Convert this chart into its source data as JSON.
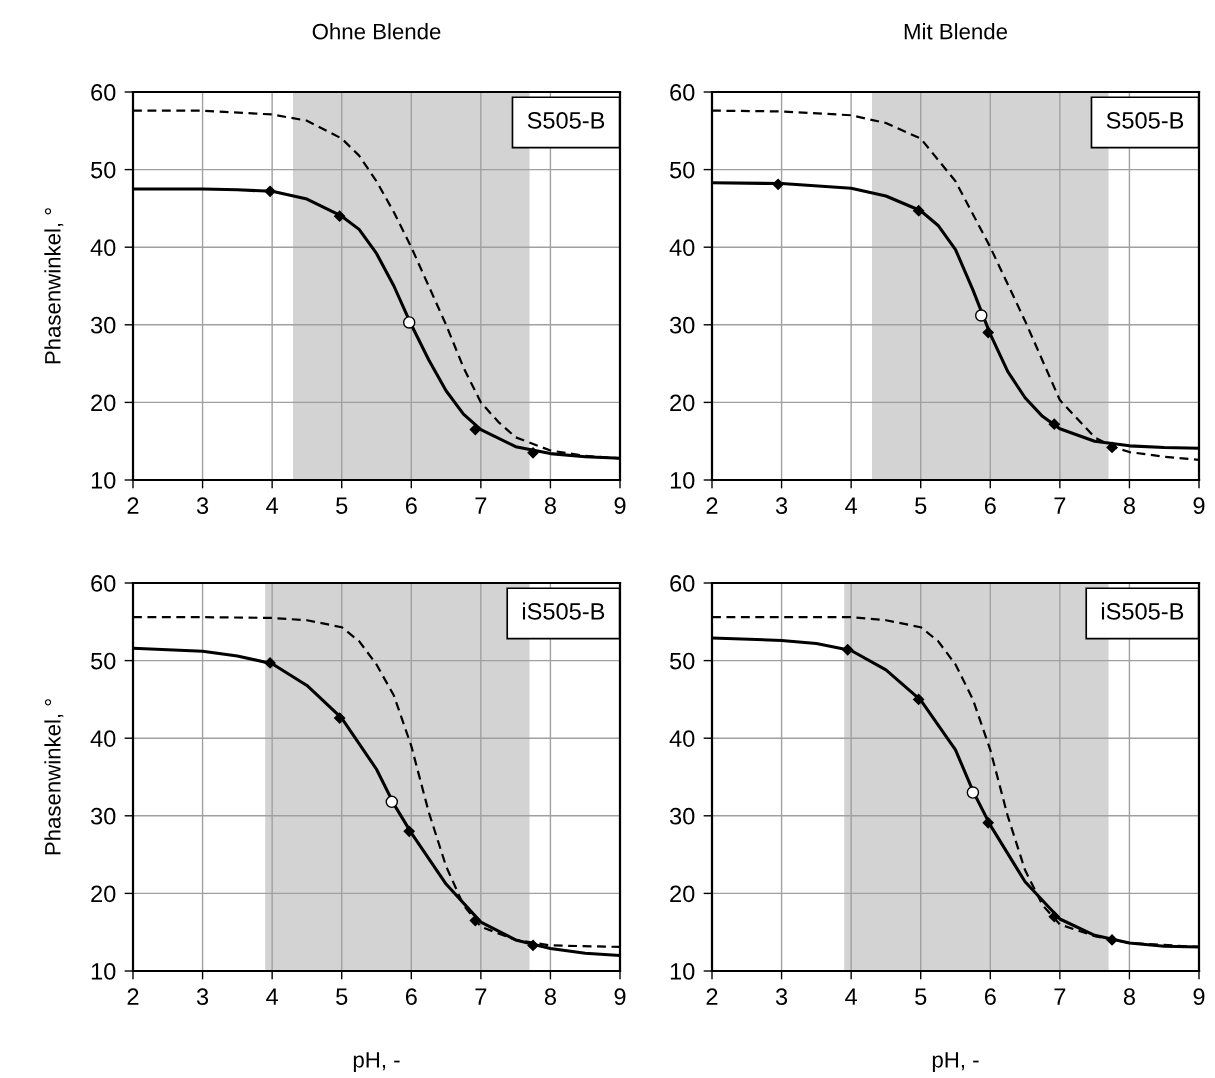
{
  "chart_data": [
    {
      "type": "line",
      "title": "Ohne Blende",
      "ylabel": "Phasenwinkel, °",
      "xlim": [
        2,
        9
      ],
      "ylim": [
        10,
        60
      ],
      "xticks": [
        2,
        3,
        4,
        5,
        6,
        7,
        8,
        9
      ],
      "yticks": [
        10,
        20,
        30,
        40,
        50,
        60
      ],
      "grid": true,
      "annotations": [
        "S505-B"
      ],
      "bands": [
        {
          "axis": "x",
          "from": 4.3,
          "to": 7.7,
          "color": "#d3d3d3"
        }
      ],
      "series": [
        {
          "color": "#000000",
          "line_style": "solid",
          "x": [
            2,
            3,
            3.5,
            4,
            4.5,
            5,
            5.25,
            5.5,
            5.75,
            6,
            6.25,
            6.5,
            6.75,
            7,
            7.5,
            8,
            8.5,
            9
          ],
          "values": [
            47.5,
            47.5,
            47.4,
            47.2,
            46.2,
            44,
            42.3,
            39.2,
            35,
            30,
            25.5,
            21.5,
            18.5,
            16.5,
            14.3,
            13.4,
            13.0,
            12.8
          ]
        },
        {
          "color": "#000000",
          "line_style": "dashed",
          "x": [
            2,
            3,
            4,
            4.5,
            5,
            5.25,
            5.5,
            5.75,
            6,
            6.25,
            6.5,
            6.75,
            7,
            7.25,
            7.5,
            8,
            8.5,
            9
          ],
          "values": [
            57.6,
            57.6,
            57.1,
            56.3,
            54,
            51.8,
            48.5,
            44.5,
            40,
            35,
            30,
            24.5,
            20,
            17.5,
            15.5,
            13.8,
            13.1,
            12.8
          ]
        },
        {
          "type": "scatter",
          "color": "#000000",
          "marker": "diamond",
          "x": [
            3.97,
            4.97,
            6.92,
            7.75
          ],
          "values": [
            47.2,
            44,
            16.5,
            13.5
          ]
        },
        {
          "type": "scatter",
          "color": "#ffffff",
          "marker": "circle",
          "x": [
            5.97
          ],
          "values": [
            30.3
          ]
        }
      ]
    },
    {
      "type": "line",
      "title": "Mit Blende",
      "xlim": [
        2,
        9
      ],
      "ylim": [
        10,
        60
      ],
      "xticks": [
        2,
        3,
        4,
        5,
        6,
        7,
        8,
        9
      ],
      "yticks": [
        10,
        20,
        30,
        40,
        50,
        60
      ],
      "grid": true,
      "annotations": [
        "S505-B"
      ],
      "bands": [
        {
          "axis": "x",
          "from": 4.3,
          "to": 7.7,
          "color": "#d3d3d3"
        }
      ],
      "series": [
        {
          "color": "#000000",
          "line_style": "solid",
          "x": [
            2,
            3,
            4,
            4.5,
            5,
            5.25,
            5.5,
            5.75,
            6,
            6.25,
            6.5,
            6.75,
            7,
            7.5,
            8,
            8.5,
            9
          ],
          "values": [
            48.3,
            48.2,
            47.6,
            46.6,
            44.7,
            42.8,
            39.7,
            34.5,
            28.8,
            24,
            20.6,
            18.2,
            16.6,
            15,
            14.4,
            14.2,
            14.1
          ]
        },
        {
          "color": "#000000",
          "line_style": "dashed",
          "x": [
            2,
            3,
            4,
            4.5,
            5,
            5.5,
            6,
            6.5,
            7,
            7.5,
            7.75,
            8,
            8.5,
            9
          ],
          "values": [
            57.6,
            57.5,
            57,
            56,
            54,
            48.5,
            40,
            30.5,
            20.3,
            15.5,
            14.3,
            13.6,
            13,
            12.6
          ]
        },
        {
          "type": "scatter",
          "color": "#000000",
          "marker": "diamond",
          "x": [
            2.95,
            4.97,
            5.97,
            6.92,
            7.75
          ],
          "values": [
            48.1,
            44.7,
            29,
            17.2,
            14.2
          ]
        },
        {
          "type": "scatter",
          "color": "#ffffff",
          "marker": "circle",
          "x": [
            5.87
          ],
          "values": [
            31.2
          ]
        }
      ]
    },
    {
      "type": "line",
      "xlabel": "pH, -",
      "ylabel": "Phasenwinkel, °",
      "xlim": [
        2,
        9
      ],
      "ylim": [
        10,
        60
      ],
      "xticks": [
        2,
        3,
        4,
        5,
        6,
        7,
        8,
        9
      ],
      "yticks": [
        10,
        20,
        30,
        40,
        50,
        60
      ],
      "grid": true,
      "annotations": [
        "iS505-B"
      ],
      "bands": [
        {
          "axis": "x",
          "from": 3.9,
          "to": 7.7,
          "color": "#d3d3d3"
        }
      ],
      "series": [
        {
          "color": "#000000",
          "line_style": "solid",
          "x": [
            2,
            3,
            3.5,
            4,
            4.5,
            5,
            5.5,
            5.75,
            6,
            6.5,
            7,
            7.5,
            8,
            8.5,
            9
          ],
          "values": [
            51.6,
            51.2,
            50.6,
            49.6,
            46.8,
            42.6,
            36,
            31.5,
            27.8,
            21.2,
            16.3,
            14,
            12.9,
            12.3,
            12.0
          ]
        },
        {
          "color": "#000000",
          "line_style": "dashed",
          "x": [
            2,
            3,
            4,
            4.5,
            5,
            5.25,
            5.5,
            5.75,
            6,
            6.25,
            6.5,
            6.75,
            7,
            7.5,
            8,
            9
          ],
          "values": [
            55.6,
            55.6,
            55.5,
            55.2,
            54.3,
            52.5,
            49.5,
            45.5,
            39,
            30.5,
            23.5,
            18.5,
            15.7,
            14,
            13.3,
            13.1
          ]
        },
        {
          "type": "scatter",
          "color": "#000000",
          "marker": "diamond",
          "x": [
            3.97,
            4.97,
            5.97,
            6.92,
            7.75
          ],
          "values": [
            49.7,
            42.6,
            28,
            16.5,
            13.3
          ]
        },
        {
          "type": "scatter",
          "color": "#ffffff",
          "marker": "circle",
          "x": [
            5.72
          ],
          "values": [
            31.8
          ]
        }
      ]
    },
    {
      "type": "line",
      "xlabel": "pH, -",
      "xlim": [
        2,
        9
      ],
      "ylim": [
        10,
        60
      ],
      "xticks": [
        2,
        3,
        4,
        5,
        6,
        7,
        8,
        9
      ],
      "yticks": [
        10,
        20,
        30,
        40,
        50,
        60
      ],
      "grid": true,
      "annotations": [
        "iS505-B"
      ],
      "bands": [
        {
          "axis": "x",
          "from": 3.9,
          "to": 7.7,
          "color": "#d3d3d3"
        }
      ],
      "series": [
        {
          "color": "#000000",
          "line_style": "solid",
          "x": [
            2,
            3,
            3.5,
            4,
            4.5,
            5,
            5.5,
            5.75,
            6,
            6.5,
            7,
            7.5,
            8,
            8.5,
            9
          ],
          "values": [
            52.9,
            52.6,
            52.2,
            51.3,
            48.8,
            44.9,
            38.5,
            33.2,
            28.8,
            21.5,
            16.7,
            14.6,
            13.6,
            13.2,
            13.1
          ]
        },
        {
          "color": "#000000",
          "line_style": "dashed",
          "x": [
            2,
            3,
            4,
            4.5,
            5,
            5.25,
            5.5,
            5.75,
            6,
            6.25,
            6.5,
            6.75,
            7,
            7.5,
            8,
            9
          ],
          "values": [
            55.6,
            55.6,
            55.6,
            55.2,
            54.3,
            52.5,
            49.5,
            45,
            38.5,
            30,
            23,
            18.5,
            16,
            14.5,
            13.6,
            13.1
          ]
        },
        {
          "type": "scatter",
          "color": "#000000",
          "marker": "diamond",
          "x": [
            3.95,
            4.97,
            5.97,
            6.92,
            7.75
          ],
          "values": [
            51.4,
            45,
            29.1,
            17,
            14
          ]
        },
        {
          "type": "scatter",
          "color": "#ffffff",
          "marker": "circle",
          "x": [
            5.75
          ],
          "values": [
            33
          ]
        }
      ]
    }
  ]
}
